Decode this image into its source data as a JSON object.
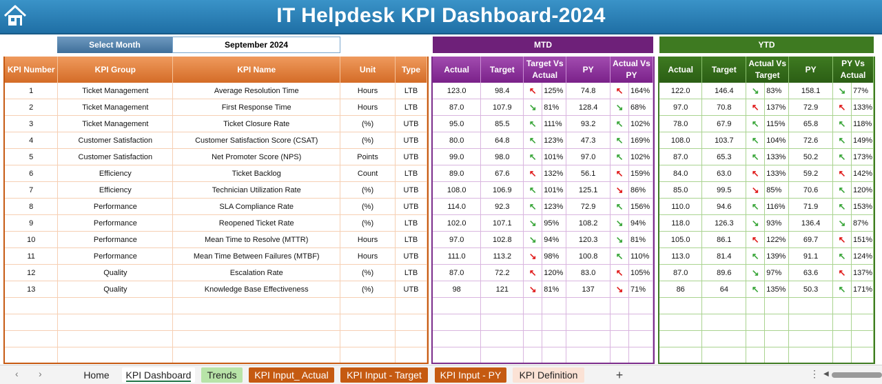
{
  "header": {
    "title": "IT Helpdesk KPI Dashboard-2024",
    "icon": "home-icon"
  },
  "selector": {
    "label": "Select Month",
    "value": "September 2024"
  },
  "sections": {
    "mtd": "MTD",
    "ytd": "YTD"
  },
  "columns": {
    "left": [
      "KPI Number",
      "KPI Group",
      "KPI Name",
      "Unit",
      "Type"
    ],
    "mtd": [
      "Actual",
      "Target",
      "Target Vs Actual",
      "PY",
      "Actual Vs PY"
    ],
    "ytd": [
      "Actual",
      "Target",
      "Actual Vs Target",
      "PY",
      "PY Vs Actual"
    ]
  },
  "colors": {
    "title_bar": "#1f6fa5",
    "kpi_header": "#d46c27",
    "mtd": "#7a2189",
    "ytd": "#3e7a21",
    "arrow_bad": "#e01b1b",
    "arrow_good": "#3aa63a"
  },
  "rows": [
    {
      "num": "1",
      "group": "Ticket Management",
      "name": "Average Resolution Time",
      "unit": "Hours",
      "type": "LTB",
      "mtd": {
        "actual": "123.0",
        "target": "98.4",
        "tva_icon": "arrow-up-red",
        "tva": "125%",
        "py": "74.8",
        "avp_icon": "arrow-up-red",
        "avp": "164%"
      },
      "ytd": {
        "actual": "122.0",
        "target": "146.4",
        "avt_icon": "arrow-down-green",
        "avt": "83%",
        "py": "158.1",
        "pva_icon": "arrow-down-green",
        "pva": "77%"
      }
    },
    {
      "num": "2",
      "group": "Ticket Management",
      "name": "First Response Time",
      "unit": "Hours",
      "type": "LTB",
      "mtd": {
        "actual": "87.0",
        "target": "107.9",
        "tva_icon": "arrow-down-green",
        "tva": "81%",
        "py": "128.4",
        "avp_icon": "arrow-down-green",
        "avp": "68%"
      },
      "ytd": {
        "actual": "97.0",
        "target": "70.8",
        "avt_icon": "arrow-up-red",
        "avt": "137%",
        "py": "72.9",
        "pva_icon": "arrow-up-red",
        "pva": "133%"
      }
    },
    {
      "num": "3",
      "group": "Ticket Management",
      "name": "Ticket Closure Rate",
      "unit": "(%)",
      "type": "UTB",
      "mtd": {
        "actual": "95.0",
        "target": "85.5",
        "tva_icon": "arrow-up-green",
        "tva": "111%",
        "py": "93.2",
        "avp_icon": "arrow-up-green",
        "avp": "102%"
      },
      "ytd": {
        "actual": "78.0",
        "target": "67.9",
        "avt_icon": "arrow-up-green",
        "avt": "115%",
        "py": "65.8",
        "pva_icon": "arrow-up-green",
        "pva": "118%"
      }
    },
    {
      "num": "4",
      "group": "Customer Satisfaction",
      "name": "Customer Satisfaction Score (CSAT)",
      "unit": "(%)",
      "type": "UTB",
      "mtd": {
        "actual": "80.0",
        "target": "64.8",
        "tva_icon": "arrow-up-green",
        "tva": "123%",
        "py": "47.3",
        "avp_icon": "arrow-up-green",
        "avp": "169%"
      },
      "ytd": {
        "actual": "108.0",
        "target": "103.7",
        "avt_icon": "arrow-up-green",
        "avt": "104%",
        "py": "72.6",
        "pva_icon": "arrow-up-green",
        "pva": "149%"
      }
    },
    {
      "num": "5",
      "group": "Customer Satisfaction",
      "name": "Net Promoter Score (NPS)",
      "unit": "Points",
      "type": "UTB",
      "mtd": {
        "actual": "99.0",
        "target": "98.0",
        "tva_icon": "arrow-up-green",
        "tva": "101%",
        "py": "97.0",
        "avp_icon": "arrow-up-green",
        "avp": "102%"
      },
      "ytd": {
        "actual": "87.0",
        "target": "65.3",
        "avt_icon": "arrow-up-green",
        "avt": "133%",
        "py": "50.2",
        "pva_icon": "arrow-up-green",
        "pva": "173%"
      }
    },
    {
      "num": "6",
      "group": "Efficiency",
      "name": "Ticket Backlog",
      "unit": "Count",
      "type": "LTB",
      "mtd": {
        "actual": "89.0",
        "target": "67.6",
        "tva_icon": "arrow-up-red",
        "tva": "132%",
        "py": "56.1",
        "avp_icon": "arrow-up-red",
        "avp": "159%"
      },
      "ytd": {
        "actual": "84.0",
        "target": "63.0",
        "avt_icon": "arrow-up-red",
        "avt": "133%",
        "py": "59.2",
        "pva_icon": "arrow-up-red",
        "pva": "142%"
      }
    },
    {
      "num": "7",
      "group": "Efficiency",
      "name": "Technician Utilization Rate",
      "unit": "(%)",
      "type": "UTB",
      "mtd": {
        "actual": "108.0",
        "target": "106.9",
        "tva_icon": "arrow-up-green",
        "tva": "101%",
        "py": "125.1",
        "avp_icon": "arrow-down-red",
        "avp": "86%"
      },
      "ytd": {
        "actual": "85.0",
        "target": "99.5",
        "avt_icon": "arrow-down-red",
        "avt": "85%",
        "py": "70.6",
        "pva_icon": "arrow-up-green",
        "pva": "120%"
      }
    },
    {
      "num": "8",
      "group": "Performance",
      "name": "SLA Compliance Rate",
      "unit": "(%)",
      "type": "UTB",
      "mtd": {
        "actual": "114.0",
        "target": "92.3",
        "tva_icon": "arrow-up-green",
        "tva": "123%",
        "py": "72.9",
        "avp_icon": "arrow-up-green",
        "avp": "156%"
      },
      "ytd": {
        "actual": "110.0",
        "target": "94.6",
        "avt_icon": "arrow-up-green",
        "avt": "116%",
        "py": "71.9",
        "pva_icon": "arrow-up-green",
        "pva": "153%"
      }
    },
    {
      "num": "9",
      "group": "Performance",
      "name": "Reopened Ticket Rate",
      "unit": "(%)",
      "type": "LTB",
      "mtd": {
        "actual": "102.0",
        "target": "107.1",
        "tva_icon": "arrow-down-green",
        "tva": "95%",
        "py": "108.2",
        "avp_icon": "arrow-down-green",
        "avp": "94%"
      },
      "ytd": {
        "actual": "118.0",
        "target": "126.3",
        "avt_icon": "arrow-down-green",
        "avt": "93%",
        "py": "136.4",
        "pva_icon": "arrow-down-green",
        "pva": "87%"
      }
    },
    {
      "num": "10",
      "group": "Performance",
      "name": "Mean Time to Resolve (MTTR)",
      "unit": "Hours",
      "type": "LTB",
      "mtd": {
        "actual": "97.0",
        "target": "102.8",
        "tva_icon": "arrow-down-green",
        "tva": "94%",
        "py": "120.3",
        "avp_icon": "arrow-down-green",
        "avp": "81%"
      },
      "ytd": {
        "actual": "105.0",
        "target": "86.1",
        "avt_icon": "arrow-up-red",
        "avt": "122%",
        "py": "69.7",
        "pva_icon": "arrow-up-red",
        "pva": "151%"
      }
    },
    {
      "num": "11",
      "group": "Performance",
      "name": "Mean Time Between Failures (MTBF)",
      "unit": "Hours",
      "type": "UTB",
      "mtd": {
        "actual": "111.0",
        "target": "113.2",
        "tva_icon": "arrow-down-red",
        "tva": "98%",
        "py": "100.8",
        "avp_icon": "arrow-up-green",
        "avp": "110%"
      },
      "ytd": {
        "actual": "113.0",
        "target": "81.4",
        "avt_icon": "arrow-up-green",
        "avt": "139%",
        "py": "91.1",
        "pva_icon": "arrow-up-green",
        "pva": "124%"
      }
    },
    {
      "num": "12",
      "group": "Quality",
      "name": "Escalation Rate",
      "unit": "(%)",
      "type": "LTB",
      "mtd": {
        "actual": "87.0",
        "target": "72.2",
        "tva_icon": "arrow-up-red",
        "tva": "120%",
        "py": "83.0",
        "avp_icon": "arrow-up-red",
        "avp": "105%"
      },
      "ytd": {
        "actual": "87.0",
        "target": "89.6",
        "avt_icon": "arrow-down-green",
        "avt": "97%",
        "py": "63.6",
        "pva_icon": "arrow-up-red",
        "pva": "137%"
      }
    },
    {
      "num": "13",
      "group": "Quality",
      "name": "Knowledge Base Effectiveness",
      "unit": "(%)",
      "type": "UTB",
      "mtd": {
        "actual": "98",
        "target": "121",
        "tva_icon": "arrow-down-red",
        "tva": "81%",
        "py": "137",
        "avp_icon": "arrow-down-red",
        "avp": "71%"
      },
      "ytd": {
        "actual": "86",
        "target": "64",
        "avt_icon": "arrow-up-green",
        "avt": "135%",
        "py": "50.3",
        "pva_icon": "arrow-up-green",
        "pva": "171%"
      }
    }
  ],
  "tabs": {
    "home": "Home",
    "dashboard": "KPI Dashboard",
    "trends": "Trends",
    "input_actual": "KPI Input_ Actual",
    "input_target": "KPI Input - Target",
    "input_py": "KPI Input - PY",
    "definition": "KPI Definition",
    "add": "+",
    "prev": "‹",
    "next": "›",
    "more": "⋮"
  }
}
